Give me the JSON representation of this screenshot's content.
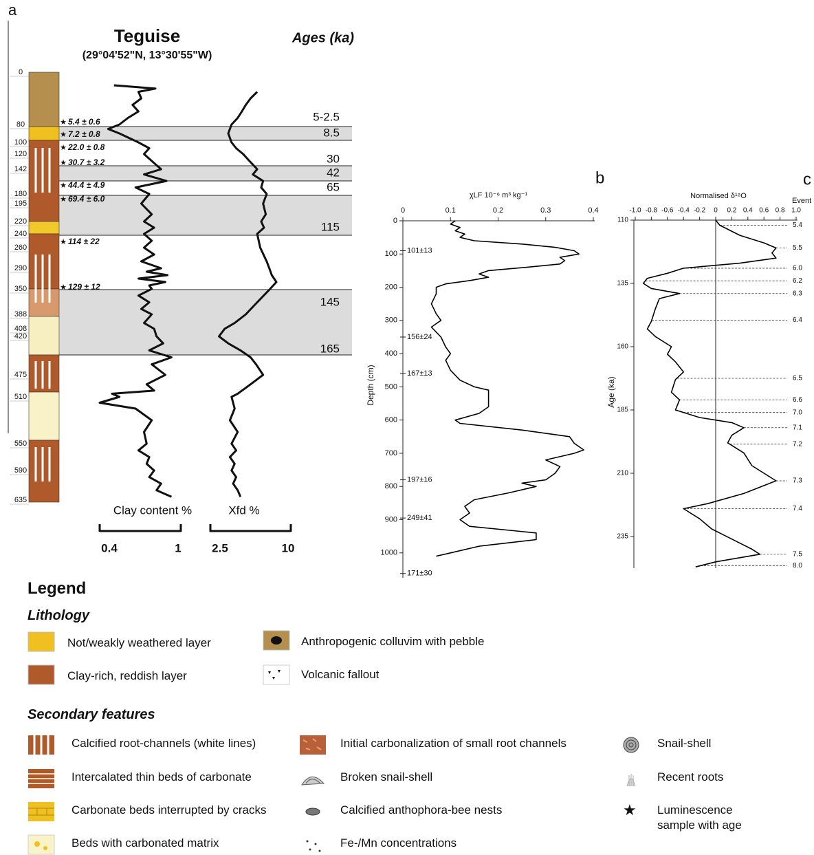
{
  "chart_data": [
    {
      "type": "depth_profile",
      "label": "a",
      "title": "Teguise",
      "subtitle": "(29°04'52\"N, 13°30'55\"W)",
      "ages_title": "Ages (ka)",
      "depths": [
        0,
        80,
        100,
        120,
        142,
        180,
        195,
        220,
        240,
        260,
        290,
        350,
        388,
        408,
        420,
        475,
        510,
        550,
        590,
        635
      ],
      "luminescence": [
        "5.4 ± 0.6",
        "7.2 ± 0.8",
        "22.0 ± 0.8",
        "30.7 ± 3.2",
        "44.4 ± 4.9",
        "69.4 ± 6.0",
        "114 ± 22",
        "129 ± 12"
      ],
      "ages": [
        "5-2.5",
        "8.5",
        "30",
        "42",
        "65",
        "115",
        "145",
        "165"
      ],
      "log": true,
      "series": [
        {
          "name": "Clay content %",
          "color": "#111",
          "xlim": [
            0.4,
            1
          ],
          "xticks": [
            0.4,
            1
          ],
          "y": [
            20,
            25,
            30,
            40,
            50,
            60,
            70,
            80,
            85,
            90,
            100,
            110,
            120,
            130,
            142,
            150,
            160,
            170,
            180,
            195,
            210,
            220,
            230,
            240,
            250,
            260,
            270,
            280,
            290,
            300,
            310,
            320,
            330,
            340,
            350,
            360,
            370,
            380,
            388,
            400,
            408,
            420,
            430,
            440,
            450,
            460,
            475,
            490,
            500,
            505,
            510,
            515,
            520,
            530,
            540,
            550,
            560,
            570,
            580,
            590,
            600,
            610,
            620,
            630
          ],
          "values": [
            0.47,
            0.75,
            0.62,
            0.64,
            0.58,
            0.62,
            0.55,
            0.5,
            0.44,
            0.5,
            0.62,
            0.7,
            0.66,
            0.72,
            0.8,
            0.66,
            0.85,
            0.6,
            0.7,
            0.64,
            0.72,
            0.66,
            0.74,
            0.66,
            0.72,
            0.66,
            0.74,
            0.64,
            0.8,
            0.68,
            0.86,
            0.62,
            0.84,
            0.7,
            0.72,
            0.62,
            0.7,
            0.64,
            0.72,
            0.66,
            0.74,
            0.76,
            0.82,
            0.7,
            0.9,
            0.72,
            0.84,
            0.68,
            0.74,
            0.46,
            0.5,
            0.4,
            0.6,
            0.72,
            0.66,
            0.68,
            0.62,
            0.7,
            0.68,
            0.74,
            0.7,
            0.8,
            0.76,
            0.9
          ]
        },
        {
          "name": "Xfd %",
          "color": "#111",
          "xlim": [
            2.5,
            10
          ],
          "xticks": [
            2.5,
            10
          ],
          "y": [
            30,
            40,
            50,
            60,
            70,
            80,
            90,
            100,
            110,
            120,
            130,
            142,
            150,
            160,
            170,
            180,
            195,
            210,
            220,
            230,
            240,
            260,
            280,
            290,
            310,
            330,
            350,
            370,
            388,
            400,
            408,
            420,
            430,
            440,
            450,
            460,
            475,
            490,
            505,
            510,
            520,
            530,
            540,
            550,
            560,
            570,
            580,
            590,
            600,
            610,
            620,
            630
          ],
          "values": [
            5.6,
            5.0,
            4.6,
            4.3,
            4.0,
            3.6,
            3.4,
            3.6,
            3.9,
            4.4,
            4.9,
            5.6,
            5.2,
            6.2,
            6.0,
            6.6,
            6.2,
            6.5,
            6.0,
            6.3,
            5.6,
            5.9,
            6.6,
            6.9,
            7.2,
            7.8,
            7.0,
            5.6,
            4.6,
            3.8,
            3.2,
            2.9,
            3.4,
            4.2,
            5.0,
            5.5,
            6.2,
            5.0,
            4.0,
            3.6,
            3.8,
            3.5,
            4.0,
            3.6,
            3.9,
            3.5,
            3.8,
            3.6,
            3.9,
            3.7,
            4.0,
            4.2
          ]
        }
      ]
    },
    {
      "type": "line",
      "label": "b",
      "xlabel": "χLF 10⁻⁶ m³ kg⁻¹",
      "ylabel": "Depth (cm)",
      "color": "#000",
      "xlim": [
        0,
        0.4
      ],
      "xticks": [
        0,
        0.1,
        0.2,
        0.3,
        0.4
      ],
      "ylim": [
        0,
        1075
      ],
      "yticks": [
        0,
        100,
        200,
        300,
        400,
        500,
        600,
        700,
        800,
        900,
        1000
      ],
      "y_inverted": true,
      "y": [
        0,
        10,
        20,
        30,
        40,
        50,
        60,
        70,
        80,
        90,
        100,
        110,
        120,
        130,
        140,
        150,
        160,
        170,
        180,
        190,
        200,
        220,
        250,
        280,
        300,
        320,
        350,
        380,
        400,
        420,
        450,
        480,
        500,
        510,
        560,
        580,
        600,
        610,
        630,
        650,
        670,
        690,
        700,
        720,
        740,
        760,
        780,
        790,
        800,
        820,
        840,
        860,
        880,
        900,
        920,
        940,
        960,
        980,
        1000,
        1010
      ],
      "values": [
        0.11,
        0.1,
        0.12,
        0.11,
        0.13,
        0.12,
        0.15,
        0.25,
        0.32,
        0.36,
        0.37,
        0.33,
        0.34,
        0.33,
        0.26,
        0.18,
        0.16,
        0.18,
        0.14,
        0.09,
        0.07,
        0.07,
        0.06,
        0.07,
        0.08,
        0.06,
        0.08,
        0.09,
        0.1,
        0.09,
        0.1,
        0.12,
        0.15,
        0.18,
        0.18,
        0.16,
        0.11,
        0.12,
        0.25,
        0.35,
        0.36,
        0.38,
        0.36,
        0.3,
        0.33,
        0.32,
        0.3,
        0.25,
        0.28,
        0.22,
        0.15,
        0.13,
        0.14,
        0.12,
        0.14,
        0.28,
        0.28,
        0.16,
        0.1,
        0.07
      ],
      "annotations": [
        {
          "text": "101±13",
          "y": 90
        },
        {
          "text": "156±24",
          "y": 350
        },
        {
          "text": "167±13",
          "y": 460
        },
        {
          "text": "197±16",
          "y": 780
        },
        {
          "text": "249±41",
          "y": 895
        },
        {
          "text": "171±30",
          "y": 1062
        }
      ]
    },
    {
      "type": "line",
      "label": "c",
      "xlabel": "Normalised δ¹⁸O",
      "ylabel": "Age (ka)",
      "events_title": "Event",
      "color": "#000",
      "xlim": [
        -1,
        1
      ],
      "xticks": [
        {
          "value": -1,
          "label": "-1.0"
        },
        -0.8,
        -0.6,
        -0.4,
        -0.2,
        0,
        0.2,
        0.4,
        0.6,
        0.8,
        {
          "value": 1,
          "label": "1.0"
        }
      ],
      "ylim": [
        110,
        247.5
      ],
      "yticks": [
        110,
        135,
        160,
        185,
        210,
        235
      ],
      "y_inverted": true,
      "zero_line": true,
      "y": [
        110,
        112,
        116,
        119,
        121,
        123,
        125,
        127,
        129,
        131,
        133,
        135,
        137,
        139,
        141,
        145,
        150,
        153,
        156,
        160,
        163,
        166,
        170,
        173,
        178,
        181,
        185,
        188,
        190,
        192,
        195,
        198,
        202,
        207,
        213,
        218,
        222,
        224,
        228,
        232,
        236,
        240,
        242,
        245,
        247
      ],
      "values": [
        0,
        0.05,
        0.3,
        0.6,
        0.75,
        0.7,
        0.75,
        0.3,
        -0.4,
        -0.6,
        -0.85,
        -0.9,
        -0.8,
        -0.45,
        -0.7,
        -0.75,
        -0.8,
        -0.85,
        -0.75,
        -0.55,
        -0.6,
        -0.5,
        -0.4,
        -0.5,
        -0.55,
        -0.45,
        -0.5,
        -0.2,
        0.2,
        0.35,
        0.2,
        0.15,
        0.35,
        0.45,
        0.75,
        0.35,
        -0.1,
        -0.4,
        -0.2,
        -0.05,
        0.2,
        0.45,
        0.55,
        0,
        -0.25
      ],
      "events": [
        {
          "label": "5.4",
          "y": 112
        },
        {
          "label": "5.5",
          "y": 121
        },
        {
          "label": "6.0",
          "y": 129
        },
        {
          "label": "6.2",
          "y": 134
        },
        {
          "label": "6.3",
          "y": 139
        },
        {
          "label": "6.4",
          "y": 149.5
        },
        {
          "label": "6.5",
          "y": 172.5
        },
        {
          "label": "6.6",
          "y": 181
        },
        {
          "label": "7.0",
          "y": 186
        },
        {
          "label": "7.1",
          "y": 192
        },
        {
          "label": "7.2",
          "y": 198.5
        },
        {
          "label": "7.3",
          "y": 213
        },
        {
          "label": "7.4",
          "y": 224
        },
        {
          "label": "7.5",
          "y": 242
        },
        {
          "label": "8.0",
          "y": 246.5
        }
      ]
    }
  ],
  "legend": {
    "title": "Legend",
    "lithology_heading": "Lithology",
    "secondary_heading": "Secondary features",
    "lithology": [
      "Not/weakly weathered layer",
      "Clay-rich, reddish layer",
      "Anthropogenic colluvim with pebble",
      "Volcanic fallout"
    ],
    "secondary": [
      "Calcified root-channels (white lines)",
      "Intercalated thin beds of carbonate",
      "Carbonate beds interrupted by cracks",
      "Beds with carbonated matrix",
      "Initial carbonalization of small root channels",
      "Broken snail-shell",
      "Calcified anthophora-bee nests",
      "Fe-/Mn concentrations",
      "Snail-shell",
      "Recent roots",
      "Luminescence sample with age"
    ]
  }
}
